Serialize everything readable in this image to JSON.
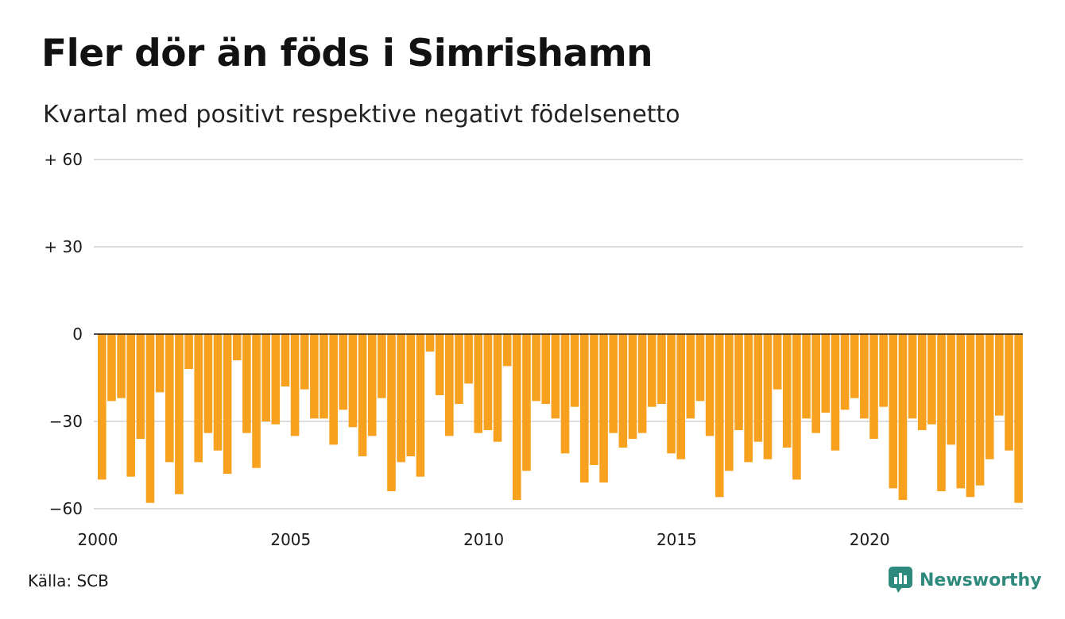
{
  "title": "Fler dör än föds i Simrishamn",
  "subtitle": "Kvartal med positivt respektive negativt födelsenetto",
  "source": "Källa: SCB",
  "brand": {
    "name": "Newsworthy",
    "icon": "newsworthy-logo-icon",
    "color": "#2e8a7c"
  },
  "colors": {
    "bar": "#f7a11f",
    "grid": "#dddddd",
    "zero_line": "#111111"
  },
  "chart_data": {
    "type": "bar",
    "title": "Fler dör än föds i Simrishamn",
    "subtitle": "Kvartal med positivt respektive negativt födelsenetto",
    "xlabel": "",
    "ylabel": "",
    "ylim": [
      -60,
      60
    ],
    "grid": true,
    "legend": "none",
    "y_ticks": [
      {
        "value": 60,
        "label": "+ 60"
      },
      {
        "value": 30,
        "label": "+ 30"
      },
      {
        "value": 0,
        "label": "0"
      },
      {
        "value": -30,
        "label": "−30"
      },
      {
        "value": -60,
        "label": "−60"
      }
    ],
    "x_range": [
      2000,
      2024
    ],
    "x_ticks": [
      {
        "value": 2000,
        "label": "2000"
      },
      {
        "value": 2005,
        "label": "2005"
      },
      {
        "value": 2010,
        "label": "2010"
      },
      {
        "value": 2015,
        "label": "2015"
      },
      {
        "value": 2020,
        "label": "2020"
      }
    ],
    "periods_per_year": 4,
    "values": [
      -50,
      -23,
      -22,
      -49,
      -36,
      -58,
      -20,
      -44,
      -55,
      -12,
      -44,
      -34,
      -40,
      -48,
      -9,
      -34,
      -46,
      -30,
      -31,
      -18,
      -35,
      -19,
      -29,
      -29,
      -38,
      -26,
      -32,
      -42,
      -35,
      -22,
      -54,
      -44,
      -42,
      -49,
      -6,
      -21,
      -35,
      -24,
      -17,
      -34,
      -33,
      -37,
      -11,
      -57,
      -47,
      -23,
      -24,
      -29,
      -41,
      -25,
      -51,
      -45,
      -51,
      -34,
      -39,
      -36,
      -34,
      -25,
      -24,
      -41,
      -43,
      -29,
      -23,
      -35,
      -56,
      -47,
      -33,
      -44,
      -37,
      -43,
      -19,
      -39,
      -50,
      -29,
      -34,
      -27,
      -40,
      -26,
      -22,
      -29,
      -36,
      -25,
      -53,
      -57,
      -29,
      -33,
      -31,
      -54,
      -38,
      -53,
      -56,
      -52,
      -43,
      -28,
      -40,
      -58
    ]
  }
}
